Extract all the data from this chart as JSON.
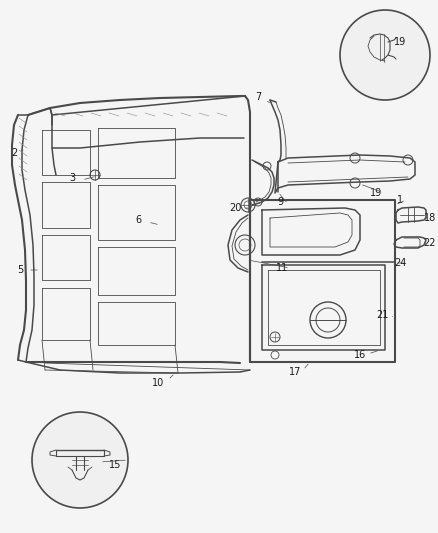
{
  "background_color": "#f5f5f5",
  "line_color": "#4a4a4a",
  "label_color": "#1a1a1a",
  "lw_main": 1.1,
  "lw_thin": 0.6,
  "lw_thick": 1.5,
  "figsize": [
    4.38,
    5.33
  ],
  "dpi": 100,
  "label_fs": 7,
  "xlim": [
    0,
    438
  ],
  "ylim": [
    0,
    533
  ]
}
